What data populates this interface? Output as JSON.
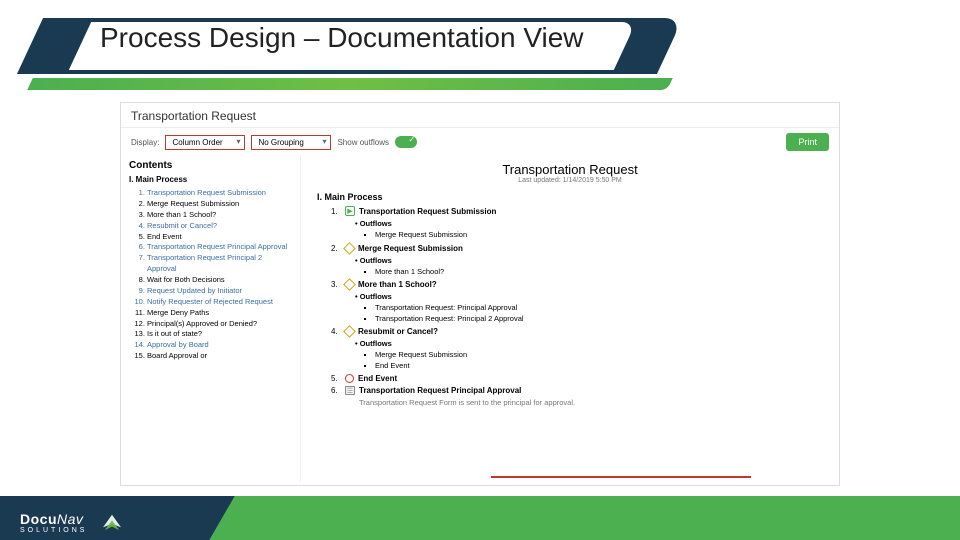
{
  "slide": {
    "title": "Process Design – Documentation View"
  },
  "brand": {
    "name": "DocuNav",
    "sub": "SOLUTIONS"
  },
  "colors": {
    "dark": "#1a3a52",
    "green": "#4caf50",
    "red": "#c0392b",
    "link": "#3a6ea5"
  },
  "screenshot": {
    "title": "Transportation Request",
    "toolbar": {
      "display_label": "Display:",
      "select1": "Column Order",
      "select2": "No Grouping",
      "outflows_label": "Show outflows",
      "print": "Print"
    },
    "contents": {
      "heading": "Contents",
      "section": "I. Main Process",
      "items": [
        {
          "text": "Transportation Request Submission",
          "link": true
        },
        {
          "text": "Merge Request Submission",
          "link": false
        },
        {
          "text": "More than 1 School?",
          "link": false
        },
        {
          "text": "Resubmit or Cancel?",
          "link": true
        },
        {
          "text": "End Event",
          "link": false
        },
        {
          "text": "Transportation Request Principal Approval",
          "link": true
        },
        {
          "text": "Transportation Request Principal 2 Approval",
          "link": true
        },
        {
          "text": "Wait for Both Decisions",
          "link": false
        },
        {
          "text": "Request Updated by Initiator",
          "link": true
        },
        {
          "text": "Notify Requester of Rejected Request",
          "link": true
        },
        {
          "text": "Merge Deny Paths",
          "link": false
        },
        {
          "text": "Principal(s) Approved or Denied?",
          "link": false
        },
        {
          "text": "Is it out of state?",
          "link": false
        },
        {
          "text": "Approval by Board",
          "link": true
        },
        {
          "text": "Board Approval or",
          "link": false
        }
      ]
    },
    "doc": {
      "title": "Transportation Request",
      "updated": "Last updated: 1/14/2019 5:50 PM",
      "section": "I. Main Process",
      "steps": [
        {
          "n": "1.",
          "icon": "start",
          "label": "Transportation Request Submission",
          "outflows": [
            "Merge Request Submission"
          ]
        },
        {
          "n": "2.",
          "icon": "gateway",
          "label": "Merge Request Submission",
          "outflows": [
            "More than 1 School?"
          ]
        },
        {
          "n": "3.",
          "icon": "gateway",
          "label": "More than 1 School?",
          "outflows": [
            "Transportation Request: Principal Approval",
            "Transportation Request: Principal 2 Approval"
          ]
        },
        {
          "n": "4.",
          "icon": "gateway",
          "label": "Resubmit or Cancel?",
          "outflows": [
            "Merge Request Submission",
            "End Event"
          ]
        },
        {
          "n": "5.",
          "icon": "end",
          "label": "End Event"
        },
        {
          "n": "6.",
          "icon": "task",
          "label": "Transportation Request Principal Approval",
          "desc": "Transportation Request Form is sent to the principal for approval."
        }
      ],
      "outflows_label": "Outflows"
    }
  }
}
